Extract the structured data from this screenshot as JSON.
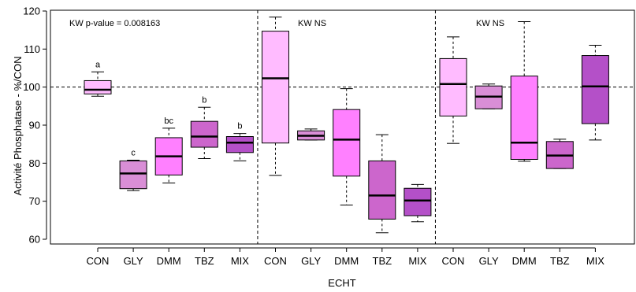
{
  "chart_data": {
    "type": "boxplot",
    "xlabel": "ECHT",
    "ylabel": "Activité Phosphatase - %/CON",
    "ylim": [
      60,
      120
    ],
    "yticks": [
      60,
      70,
      80,
      90,
      100,
      110,
      120
    ],
    "reference_line": 100,
    "annotations": [
      "KW p-value = 0.008163",
      "KW NS",
      "KW NS"
    ],
    "categories": [
      "CON",
      "GLY",
      "DMM",
      "TBZ",
      "MIX",
      "CON",
      "GLY",
      "DMM",
      "TBZ",
      "MIX",
      "CON",
      "GLY",
      "DMM",
      "TBZ",
      "MIX"
    ],
    "colors": {
      "CON": "#ffbbff",
      "GLY": "#d98ed6",
      "DMM": "#ff80ff",
      "TBZ": "#cc66cc",
      "MIX": "#b450c8"
    },
    "boxes": [
      {
        "cat": "CON",
        "min": 97.6,
        "q1": 98.2,
        "median": 99.3,
        "q3": 101.7,
        "max": 104.0,
        "letter": "a"
      },
      {
        "cat": "GLY",
        "min": 72.8,
        "q1": 73.3,
        "median": 77.3,
        "q3": 80.6,
        "max": 80.8,
        "letter": "c"
      },
      {
        "cat": "DMM",
        "min": 74.8,
        "q1": 76.9,
        "median": 81.8,
        "q3": 86.7,
        "max": 89.2,
        "letter": "bc"
      },
      {
        "cat": "TBZ",
        "min": 81.2,
        "q1": 84.2,
        "median": 87.0,
        "q3": 91.0,
        "max": 94.7,
        "letter": "b"
      },
      {
        "cat": "MIX",
        "min": 80.6,
        "q1": 82.8,
        "median": 85.4,
        "q3": 87.0,
        "max": 87.8,
        "letter": "b"
      },
      {
        "cat": "CON",
        "min": 76.8,
        "q1": 85.3,
        "median": 102.3,
        "q3": 114.7,
        "max": 118.4,
        "letter": ""
      },
      {
        "cat": "GLY",
        "min": 86.1,
        "q1": 86.1,
        "median": 87.2,
        "q3": 88.5,
        "max": 89.0,
        "letter": ""
      },
      {
        "cat": "DMM",
        "min": 69.0,
        "q1": 76.6,
        "median": 86.2,
        "q3": 94.1,
        "max": 99.6,
        "letter": ""
      },
      {
        "cat": "TBZ",
        "min": 61.7,
        "q1": 65.3,
        "median": 71.5,
        "q3": 80.6,
        "max": 87.5,
        "letter": ""
      },
      {
        "cat": "MIX",
        "min": 64.6,
        "q1": 66.2,
        "median": 70.2,
        "q3": 73.4,
        "max": 74.4,
        "letter": ""
      },
      {
        "cat": "CON",
        "min": 85.2,
        "q1": 92.4,
        "median": 100.8,
        "q3": 107.5,
        "max": 113.2,
        "letter": ""
      },
      {
        "cat": "GLY",
        "min": 94.3,
        "q1": 94.3,
        "median": 97.5,
        "q3": 100.3,
        "max": 100.8,
        "letter": ""
      },
      {
        "cat": "DMM",
        "min": 80.5,
        "q1": 81.0,
        "median": 85.4,
        "q3": 102.9,
        "max": 117.2,
        "letter": ""
      },
      {
        "cat": "TBZ",
        "min": 78.6,
        "q1": 78.6,
        "median": 82.0,
        "q3": 85.7,
        "max": 86.3,
        "letter": ""
      },
      {
        "cat": "MIX",
        "min": 86.1,
        "q1": 90.4,
        "median": 100.2,
        "q3": 108.3,
        "max": 111.0,
        "letter": ""
      }
    ]
  }
}
